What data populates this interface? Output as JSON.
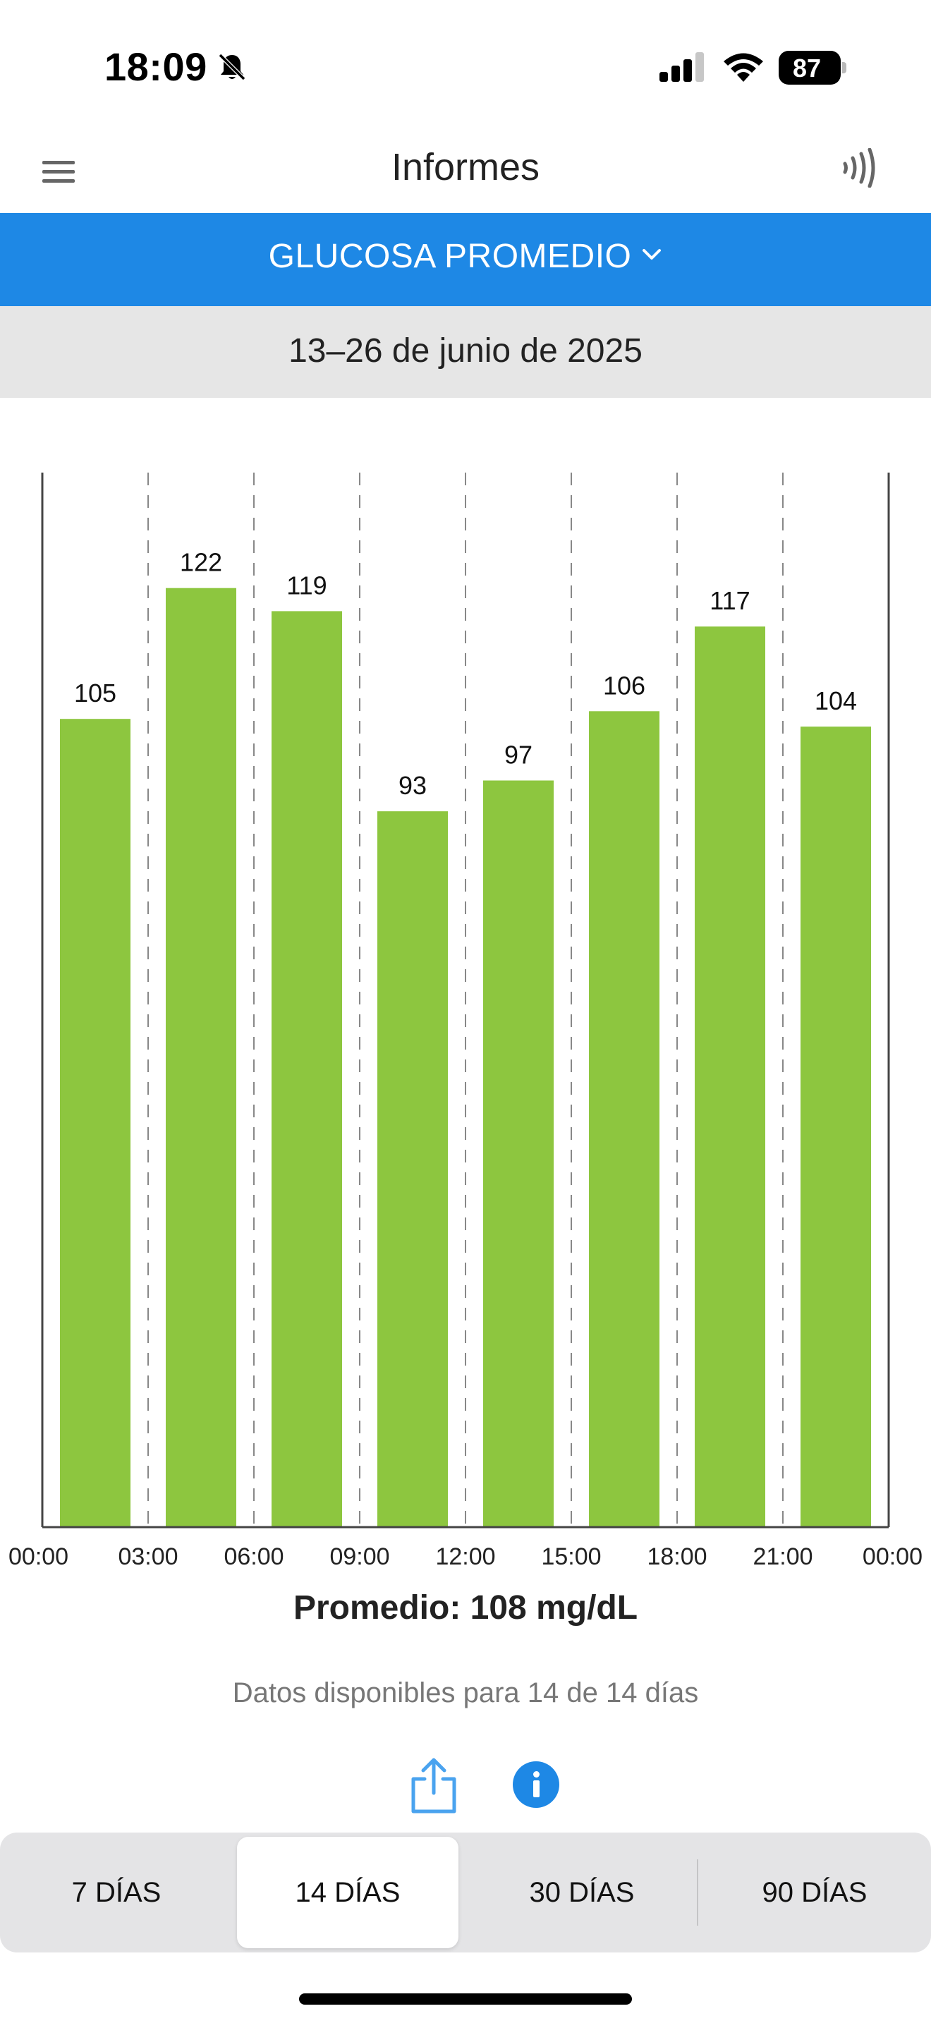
{
  "status_bar": {
    "time": "18:09",
    "battery": "87",
    "icons": [
      "bell-slash-icon",
      "signal-icon",
      "wifi-icon",
      "battery-icon"
    ]
  },
  "nav": {
    "title": "Informes",
    "left_icon": "menu-icon",
    "right_icon": "nfc-scan-icon"
  },
  "report": {
    "selector_label": "GLUCOSA PROMEDIO",
    "date_range": "13–26 de junio de 2025",
    "average": "Promedio: 108 mg/dL",
    "availability": "Datos disponibles para 14 de 14 días"
  },
  "actions": {
    "share_icon": "share-icon",
    "info_icon": "info-icon"
  },
  "periods": {
    "items": [
      "7 DÍAS",
      "14 DÍAS",
      "30 DÍAS",
      "90 DÍAS"
    ],
    "selected": "14 DÍAS"
  },
  "colors": {
    "accent": "#1e88e5",
    "bar": "#8dc63f",
    "date_bar": "#e6e6e6",
    "segmented_bg": "#e4e4e6"
  },
  "chart_data": {
    "type": "bar",
    "x_ticks": [
      "00:00",
      "03:00",
      "06:00",
      "09:00",
      "12:00",
      "15:00",
      "18:00",
      "21:00",
      "00:00"
    ],
    "series": [
      {
        "values": [
          105,
          122,
          119,
          93,
          97,
          106,
          117,
          104
        ]
      }
    ],
    "data_labels": true,
    "ylim": [
      0,
      137
    ],
    "grid": "vertical dashed",
    "legend": "none"
  }
}
